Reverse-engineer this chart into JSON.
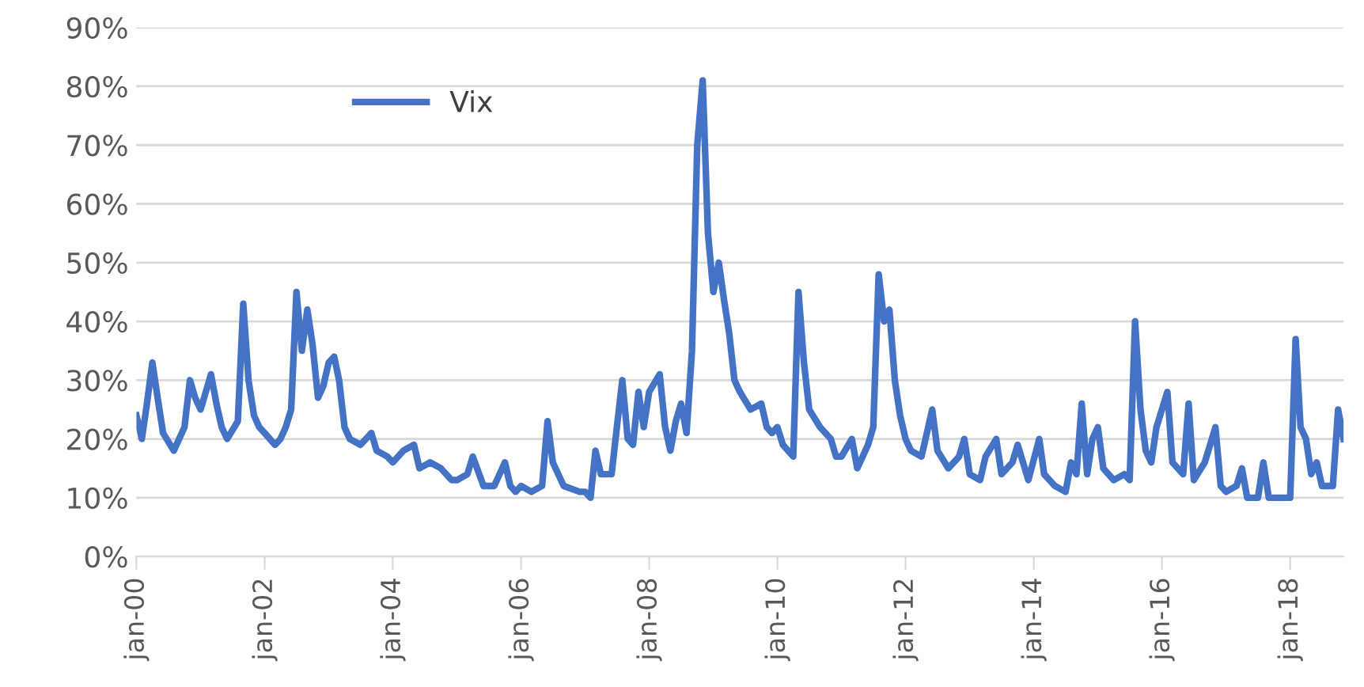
{
  "chart_data": {
    "type": "line",
    "x": [
      "2000-01",
      "2000-02",
      "2000-03",
      "2000-04",
      "2000-05",
      "2000-06",
      "2000-08",
      "2000-10",
      "2000-11",
      "2000-12",
      "2001-01",
      "2001-03",
      "2001-04",
      "2001-05",
      "2001-06",
      "2001-08",
      "2001-09",
      "2001-10",
      "2001-11",
      "2001-12",
      "2002-01",
      "2002-03",
      "2002-04",
      "2002-05",
      "2002-06",
      "2002-07",
      "2002-08",
      "2002-09",
      "2002-10",
      "2002-11",
      "2002-12",
      "2003-01",
      "2003-02",
      "2003-03",
      "2003-04",
      "2003-05",
      "2003-07",
      "2003-09",
      "2003-10",
      "2003-12",
      "2004-01",
      "2004-03",
      "2004-05",
      "2004-06",
      "2004-08",
      "2004-10",
      "2004-12",
      "2005-01",
      "2005-03",
      "2005-04",
      "2005-06",
      "2005-08",
      "2005-10",
      "2005-11",
      "2005-12",
      "2006-01",
      "2006-03",
      "2006-05",
      "2006-06",
      "2006-07",
      "2006-09",
      "2006-12",
      "2007-01",
      "2007-02",
      "2007-03",
      "2007-04",
      "2007-06",
      "2007-07",
      "2007-08",
      "2007-09",
      "2007-10",
      "2007-11",
      "2007-12",
      "2008-01",
      "2008-03",
      "2008-04",
      "2008-05",
      "2008-06",
      "2008-07",
      "2008-08",
      "2008-09",
      "2008-10",
      "2008-11",
      "2008-12",
      "2009-01",
      "2009-02",
      "2009-03",
      "2009-04",
      "2009-05",
      "2009-06",
      "2009-08",
      "2009-10",
      "2009-11",
      "2009-12",
      "2010-01",
      "2010-02",
      "2010-04",
      "2010-05",
      "2010-06",
      "2010-07",
      "2010-09",
      "2010-11",
      "2010-12",
      "2011-01",
      "2011-03",
      "2011-04",
      "2011-06",
      "2011-07",
      "2011-08",
      "2011-09",
      "2011-10",
      "2011-11",
      "2011-12",
      "2012-01",
      "2012-02",
      "2012-04",
      "2012-06",
      "2012-07",
      "2012-09",
      "2012-11",
      "2012-12",
      "2013-01",
      "2013-03",
      "2013-04",
      "2013-06",
      "2013-07",
      "2013-09",
      "2013-10",
      "2013-12",
      "2014-02",
      "2014-03",
      "2014-05",
      "2014-07",
      "2014-08",
      "2014-09",
      "2014-10",
      "2014-11",
      "2014-12",
      "2015-01",
      "2015-02",
      "2015-04",
      "2015-06",
      "2015-07",
      "2015-08",
      "2015-09",
      "2015-10",
      "2015-11",
      "2015-12",
      "2016-01",
      "2016-02",
      "2016-03",
      "2016-05",
      "2016-06",
      "2016-07",
      "2016-09",
      "2016-11",
      "2016-12",
      "2017-01",
      "2017-03",
      "2017-04",
      "2017-05",
      "2017-07",
      "2017-08",
      "2017-09",
      "2017-11",
      "2017-12",
      "2018-01",
      "2018-02",
      "2018-03",
      "2018-04",
      "2018-05",
      "2018-06",
      "2018-07",
      "2018-09",
      "2018-10",
      "2018-11"
    ],
    "series": [
      {
        "name": "Vix",
        "color": "#4472c4",
        "values": [
          24,
          20,
          26,
          33,
          27,
          21,
          18,
          22,
          30,
          27,
          25,
          31,
          26,
          22,
          20,
          23,
          43,
          30,
          24,
          22,
          21,
          19,
          20,
          22,
          25,
          45,
          35,
          42,
          36,
          27,
          29,
          33,
          34,
          30,
          22,
          20,
          19,
          21,
          18,
          17,
          16,
          18,
          19,
          15,
          16,
          15,
          13,
          13,
          14,
          17,
          12,
          12,
          16,
          12,
          11,
          12,
          11,
          12,
          23,
          16,
          12,
          11,
          11,
          10,
          18,
          14,
          14,
          22,
          30,
          20,
          19,
          28,
          22,
          28,
          31,
          22,
          18,
          23,
          26,
          21,
          35,
          70,
          81,
          55,
          45,
          50,
          44,
          38,
          30,
          28,
          25,
          26,
          22,
          21,
          22,
          19,
          17,
          45,
          33,
          25,
          22,
          20,
          17,
          17,
          20,
          15,
          19,
          22,
          48,
          40,
          42,
          30,
          24,
          20,
          18,
          17,
          25,
          18,
          15,
          17,
          20,
          14,
          13,
          17,
          20,
          14,
          16,
          19,
          13,
          20,
          14,
          12,
          11,
          16,
          14,
          26,
          14,
          20,
          22,
          15,
          13,
          14,
          13,
          40,
          25,
          18,
          16,
          22,
          25,
          28,
          16,
          14,
          26,
          13,
          16,
          22,
          12,
          11,
          12,
          15,
          10,
          10,
          16,
          10,
          10,
          10,
          10,
          37,
          22,
          20,
          14,
          16,
          12,
          12,
          25,
          20
        ]
      }
    ],
    "xlim": [
      "2000-01",
      "2018-11"
    ],
    "xticks": [
      {
        "value": "2000-01",
        "label": "jan-00"
      },
      {
        "value": "2002-01",
        "label": "jan-02"
      },
      {
        "value": "2004-01",
        "label": "jan-04"
      },
      {
        "value": "2006-01",
        "label": "jan-06"
      },
      {
        "value": "2008-01",
        "label": "jan-08"
      },
      {
        "value": "2010-01",
        "label": "jan-10"
      },
      {
        "value": "2012-01",
        "label": "jan-12"
      },
      {
        "value": "2014-01",
        "label": "jan-14"
      },
      {
        "value": "2016-01",
        "label": "jan-16"
      },
      {
        "value": "2018-01",
        "label": "jan-18"
      }
    ],
    "ylim": [
      0,
      90
    ],
    "yticks": [
      {
        "value": 0,
        "label": "0%"
      },
      {
        "value": 10,
        "label": "10%"
      },
      {
        "value": 20,
        "label": "20%"
      },
      {
        "value": 30,
        "label": "30%"
      },
      {
        "value": 40,
        "label": "40%"
      },
      {
        "value": 50,
        "label": "50%"
      },
      {
        "value": 60,
        "label": "60%"
      },
      {
        "value": 70,
        "label": "70%"
      },
      {
        "value": 80,
        "label": "80%"
      },
      {
        "value": 90,
        "label": "90%"
      }
    ],
    "grid": "y",
    "legend": "top left",
    "marker": "none",
    "line_style": "solid"
  }
}
